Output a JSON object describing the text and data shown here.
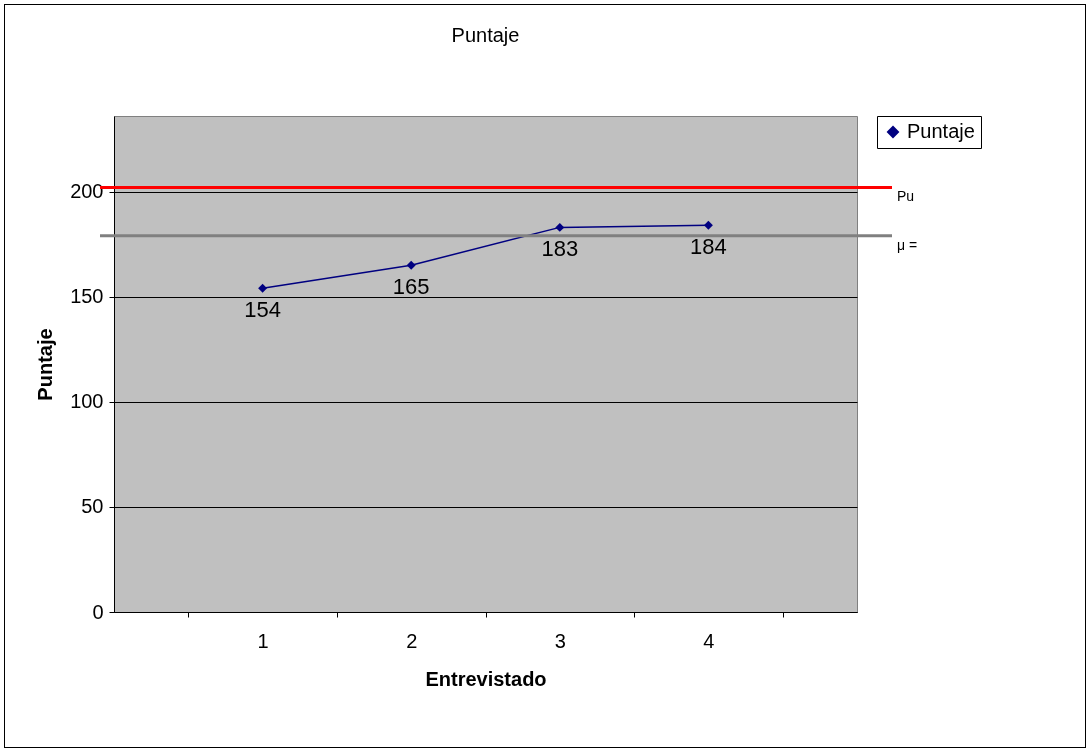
{
  "chart_data": {
    "type": "line",
    "title": "Puntaje",
    "xlabel": "Entrevistado",
    "ylabel": "Puntaje",
    "categories": [
      "1",
      "2",
      "3",
      "4"
    ],
    "series": [
      {
        "name": "Puntaje",
        "color": "#000080",
        "values": [
          154,
          165,
          183,
          184
        ]
      }
    ],
    "ylim": [
      0,
      236
    ],
    "yticks": [
      0,
      50,
      100,
      150,
      200
    ],
    "grid": "y",
    "legend": "right",
    "marker": "diamond",
    "line_style": "solid",
    "data_labels": true,
    "ref_lines": [
      {
        "axis": "y",
        "value": 202,
        "label": "Pu",
        "color": "#ff0000"
      },
      {
        "axis": "y",
        "value": 179,
        "label": "μ =",
        "color": "#808080"
      }
    ]
  }
}
